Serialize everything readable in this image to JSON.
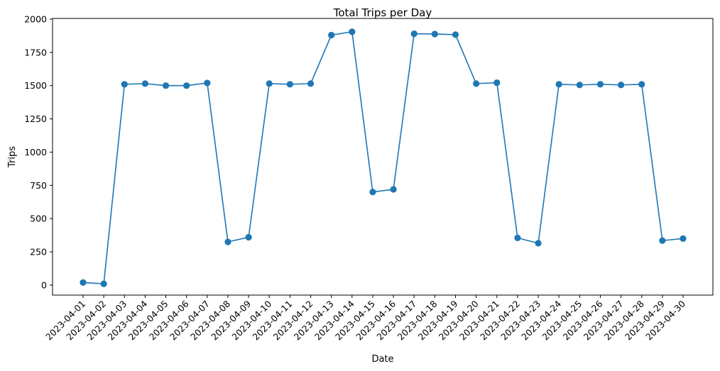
{
  "chart_data": {
    "type": "line",
    "title": "Total Trips per Day",
    "xlabel": "Date",
    "ylabel": "Trips",
    "x": [
      "2023-04-01",
      "2023-04-02",
      "2023-04-03",
      "2023-04-04",
      "2023-04-05",
      "2023-04-06",
      "2023-04-07",
      "2023-04-08",
      "2023-04-09",
      "2023-04-10",
      "2023-04-11",
      "2023-04-12",
      "2023-04-13",
      "2023-04-14",
      "2023-04-15",
      "2023-04-16",
      "2023-04-17",
      "2023-04-18",
      "2023-04-19",
      "2023-04-20",
      "2023-04-21",
      "2023-04-22",
      "2023-04-23",
      "2023-04-24",
      "2023-04-25",
      "2023-04-26",
      "2023-04-27",
      "2023-04-28",
      "2023-04-29",
      "2023-04-30"
    ],
    "series": [
      {
        "values": [
          20,
          10,
          1510,
          1515,
          1500,
          1500,
          1520,
          325,
          360,
          1515,
          1510,
          1515,
          1880,
          1905,
          700,
          720,
          1890,
          1888,
          1883,
          1515,
          1522,
          355,
          315,
          1510,
          1505,
          1510,
          1505,
          1510,
          335,
          350
        ],
        "color": "#1f77b4",
        "marker": "circle"
      }
    ],
    "ylim": [
      -75,
      2005
    ],
    "yticks": [
      0,
      250,
      500,
      750,
      1000,
      1250,
      1500,
      1750,
      2000
    ],
    "grid": false,
    "legend": "none"
  }
}
